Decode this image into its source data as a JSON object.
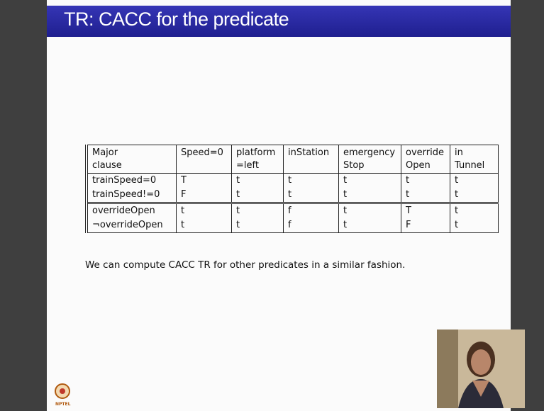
{
  "title": "TR: CACC for the predicate",
  "table": {
    "header": [
      [
        "Major",
        "clause"
      ],
      [
        "Speed=0"
      ],
      [
        "platform",
        "=left"
      ],
      [
        "inStation"
      ],
      [
        "emergency",
        "Stop"
      ],
      [
        "override",
        "Open"
      ],
      [
        "in",
        "Tunnel"
      ]
    ],
    "rows": [
      [
        "trainSpeed=0",
        "T",
        "t",
        "t",
        "t",
        "t",
        "t"
      ],
      [
        "trainSpeed!=0",
        "F",
        "t",
        "t",
        "t",
        "t",
        "t"
      ],
      [
        "overrideOpen",
        "t",
        "t",
        "f",
        "t",
        "T",
        "t"
      ],
      [
        "¬overrideOpen",
        "t",
        "t",
        "f",
        "t",
        "F",
        "t"
      ]
    ]
  },
  "note": "We can compute CACC TR for other predicates in a similar fashion.",
  "logo_label": "NPTEL"
}
